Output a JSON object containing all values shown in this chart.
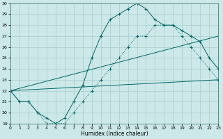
{
  "xlabel": "Humidex (Indice chaleur)",
  "background_color": "#cce8e8",
  "grid_color": "#aacccc",
  "line_color": "#006666",
  "xlim": [
    0,
    23
  ],
  "ylim": [
    19,
    30
  ],
  "xticks": [
    0,
    1,
    2,
    3,
    4,
    5,
    6,
    7,
    8,
    9,
    10,
    11,
    12,
    13,
    14,
    15,
    16,
    17,
    18,
    19,
    20,
    21,
    22,
    23
  ],
  "yticks": [
    19,
    20,
    21,
    22,
    23,
    24,
    25,
    26,
    27,
    28,
    29,
    30
  ],
  "curve1_x": [
    0,
    1,
    2,
    3,
    4,
    5,
    6,
    7,
    8,
    9,
    10,
    11,
    12,
    13,
    14,
    15,
    16,
    17,
    18,
    19,
    20,
    21,
    22,
    23
  ],
  "curve1_y": [
    22,
    21,
    21,
    20,
    19,
    19,
    19,
    20,
    21,
    22,
    23,
    24,
    25,
    26,
    27,
    27,
    28,
    28,
    28,
    27,
    26,
    25,
    24,
    23
  ],
  "curve2_x": [
    0,
    1,
    2,
    3,
    4,
    5,
    6,
    7,
    8,
    9,
    10,
    11,
    12,
    13,
    14,
    15,
    16,
    17,
    18,
    19,
    20,
    21,
    22,
    23
  ],
  "curve2_y": [
    22,
    21,
    21,
    20,
    19.5,
    19,
    19.5,
    21,
    22.5,
    25,
    27,
    28.5,
    29,
    29.5,
    30,
    29.5,
    28.5,
    28,
    28,
    27.5,
    27,
    26.5,
    25,
    24
  ],
  "curve3_x": [
    0,
    23
  ],
  "curve3_y": [
    22,
    23
  ],
  "curve4_x": [
    0,
    23
  ],
  "curve4_y": [
    22,
    27
  ]
}
